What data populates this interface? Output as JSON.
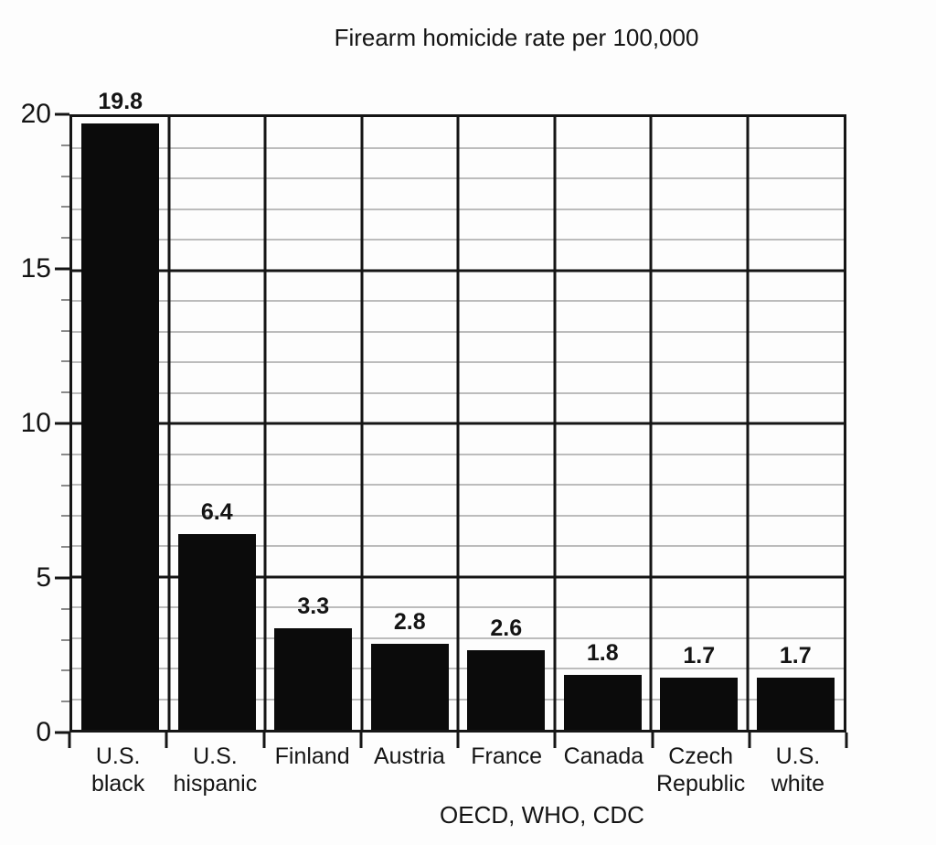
{
  "title": "Firearm homicide rate per 100,000",
  "source": "OECD, WHO, CDC",
  "colors": {
    "bar": "#0b0b0b",
    "grid_major": "#151515",
    "grid_minor": "#bcbcbc",
    "axis": "#151515",
    "minor_tick": "#8a8a8a",
    "text": "#141414",
    "background": "#fdfdfd"
  },
  "chart_data": {
    "type": "bar",
    "title": "Firearm homicide rate per 100,000",
    "categories": [
      "U.S. black",
      "U.S. hispanic",
      "Finland",
      "Austria",
      "France",
      "Canada",
      "Czech Republic",
      "U.S. white"
    ],
    "category_lines": [
      [
        "U.S.",
        "black"
      ],
      [
        "U.S.",
        "hispanic"
      ],
      [
        "Finland"
      ],
      [
        "Austria"
      ],
      [
        "France"
      ],
      [
        "Canada"
      ],
      [
        "Czech",
        "Republic"
      ],
      [
        "U.S.",
        "white"
      ]
    ],
    "values": [
      19.8,
      6.4,
      3.3,
      2.8,
      2.6,
      1.8,
      1.7,
      1.7
    ],
    "value_labels": [
      "19.8",
      "6.4",
      "3.3",
      "2.8",
      "2.6",
      "1.8",
      "1.7",
      "1.7"
    ],
    "xlabel": "",
    "ylabel": "",
    "ylim": [
      0,
      20
    ],
    "y_major_ticks": [
      0,
      5,
      10,
      15,
      20
    ],
    "y_minor_step": 1,
    "grid": "major and minor horizontal gridlines, vertical column separators",
    "legend_position": "none",
    "source": "OECD, WHO, CDC"
  }
}
